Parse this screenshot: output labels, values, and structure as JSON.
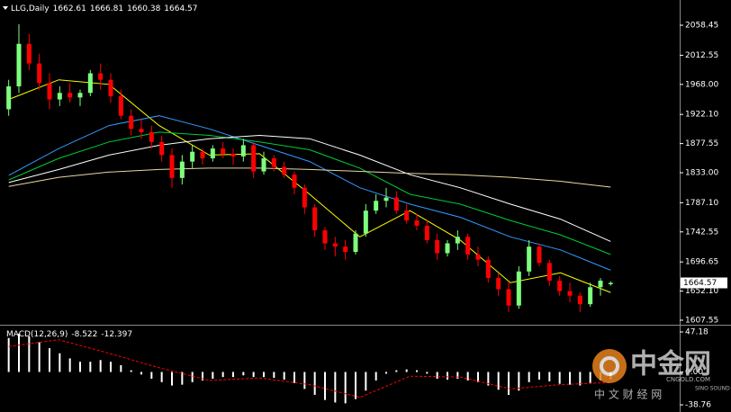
{
  "chart_data": [
    {
      "type": "candlestick",
      "title": "LLG,Daily",
      "open": [
        1930,
        1965,
        2030,
        2000,
        1970,
        1945,
        1955,
        1948,
        1955,
        1985,
        1975,
        1950,
        1920,
        1900,
        1895,
        1880,
        1860,
        1825,
        1850,
        1865,
        1855,
        1870,
        1862,
        1858,
        1875,
        1835,
        1855,
        1842,
        1830,
        1810,
        1780,
        1745,
        1725,
        1720,
        1712,
        1740,
        1775,
        1790,
        1795,
        1775,
        1760,
        1752,
        1730,
        1710,
        1725,
        1735,
        1708,
        1700,
        1672,
        1655,
        1630,
        1682,
        1720,
        1695,
        1668,
        1652,
        1645,
        1632,
        1658,
        1662.61
      ],
      "high": [
        1975,
        2060,
        2045,
        2015,
        1985,
        1965,
        1970,
        1960,
        1990,
        2000,
        1985,
        1960,
        1930,
        1915,
        1905,
        1890,
        1870,
        1860,
        1875,
        1870,
        1875,
        1880,
        1870,
        1885,
        1880,
        1865,
        1860,
        1850,
        1835,
        1815,
        1785,
        1750,
        1735,
        1730,
        1745,
        1785,
        1800,
        1810,
        1805,
        1785,
        1770,
        1760,
        1740,
        1730,
        1745,
        1740,
        1720,
        1705,
        1680,
        1665,
        1690,
        1730,
        1725,
        1700,
        1675,
        1665,
        1650,
        1665,
        1672,
        1666.81
      ],
      "low": [
        1920,
        1955,
        1990,
        1960,
        1930,
        1935,
        1940,
        1935,
        1950,
        1960,
        1940,
        1915,
        1890,
        1885,
        1870,
        1850,
        1810,
        1815,
        1840,
        1845,
        1850,
        1855,
        1845,
        1850,
        1825,
        1830,
        1835,
        1825,
        1800,
        1770,
        1735,
        1715,
        1705,
        1700,
        1708,
        1735,
        1770,
        1780,
        1770,
        1755,
        1745,
        1725,
        1700,
        1705,
        1715,
        1700,
        1690,
        1665,
        1645,
        1620,
        1625,
        1675,
        1690,
        1660,
        1645,
        1635,
        1620,
        1628,
        1645,
        1660.38
      ],
      "close": [
        1965,
        2030,
        2000,
        1970,
        1945,
        1955,
        1948,
        1955,
        1985,
        1975,
        1950,
        1920,
        1900,
        1895,
        1880,
        1860,
        1825,
        1850,
        1865,
        1855,
        1870,
        1862,
        1858,
        1875,
        1835,
        1855,
        1842,
        1830,
        1810,
        1780,
        1745,
        1725,
        1720,
        1712,
        1740,
        1775,
        1790,
        1795,
        1775,
        1760,
        1752,
        1730,
        1710,
        1725,
        1735,
        1708,
        1700,
        1672,
        1655,
        1630,
        1682,
        1720,
        1695,
        1668,
        1652,
        1645,
        1632,
        1658,
        1668,
        1664.57
      ],
      "up_color": "#7dff7d",
      "down_color": "#ff0000",
      "series": [
        {
          "color": "#ffff00",
          "values": [
            1945,
            1975,
            1968,
            1905,
            1860,
            1862,
            1800,
            1735,
            1775,
            1730,
            1665,
            1680,
            1650
          ]
        },
        {
          "color": "#3399ff",
          "values": [
            1829,
            1870,
            1905,
            1920,
            1900,
            1875,
            1850,
            1810,
            1785,
            1765,
            1735,
            1715,
            1684
          ]
        },
        {
          "color": "#00cc33",
          "values": [
            1822,
            1855,
            1880,
            1895,
            1890,
            1880,
            1868,
            1840,
            1800,
            1785,
            1760,
            1738,
            1708
          ]
        },
        {
          "color": "#ffffff",
          "values": [
            1818,
            1838,
            1860,
            1875,
            1885,
            1890,
            1885,
            1860,
            1830,
            1810,
            1785,
            1762,
            1728
          ]
        },
        {
          "color": "#e8d8a0",
          "values": [
            1812,
            1826,
            1834,
            1838,
            1840,
            1840,
            1838,
            1835,
            1832,
            1830,
            1826,
            1820,
            1811
          ]
        }
      ],
      "ylim": [
        1602,
        2097
      ],
      "yticks": [
        2058.45,
        2012.55,
        {
          "value": 1968,
          "label": "1968.00"
        },
        {
          "value": 1922.1,
          "label": "1922.10"
        },
        1877.55,
        {
          "value": 1833,
          "label": "1833.00"
        },
        {
          "value": 1787.1,
          "label": "1787.10"
        },
        1742.55,
        1696.65,
        {
          "value": 1652.1,
          "label": "1652.10"
        },
        1607.55
      ]
    },
    {
      "type": "macd",
      "title": "MACD(12,26,9)",
      "color": "#ffffff",
      "values": [
        40,
        45,
        42,
        35,
        28,
        22,
        16,
        12,
        12,
        14,
        12,
        8,
        2,
        -3,
        -8,
        -12,
        -16,
        -15,
        -12,
        -10,
        -8,
        -6,
        -6,
        -4,
        -6,
        -6,
        -7,
        -9,
        -13,
        -20,
        -27,
        -33,
        -36,
        -37,
        -32,
        -22,
        -10,
        -2,
        2,
        3,
        2,
        -2,
        -8,
        -9,
        -8,
        -10,
        -12,
        -16,
        -21,
        -27,
        -22,
        -12,
        -9,
        -11,
        -14,
        -15,
        -16,
        -13,
        -10,
        -8.522
      ],
      "signal": {
        "color": "#ff0000",
        "values": [
          30,
          38,
          22,
          5,
          -10,
          -7,
          -15,
          -30,
          -5,
          -6,
          -20,
          -15,
          -12.397
        ]
      },
      "ylim": [
        -47.2,
        54.6
      ],
      "yticks": [
        47.18,
        {
          "value": 0,
          "label": "0.00"
        },
        -38.76
      ]
    }
  ],
  "watermark": {
    "logo": "中金网",
    "site": "CNGOLD.COM",
    "slogan": "中 文 财 经 网",
    "brand": "SINO SOUND"
  }
}
